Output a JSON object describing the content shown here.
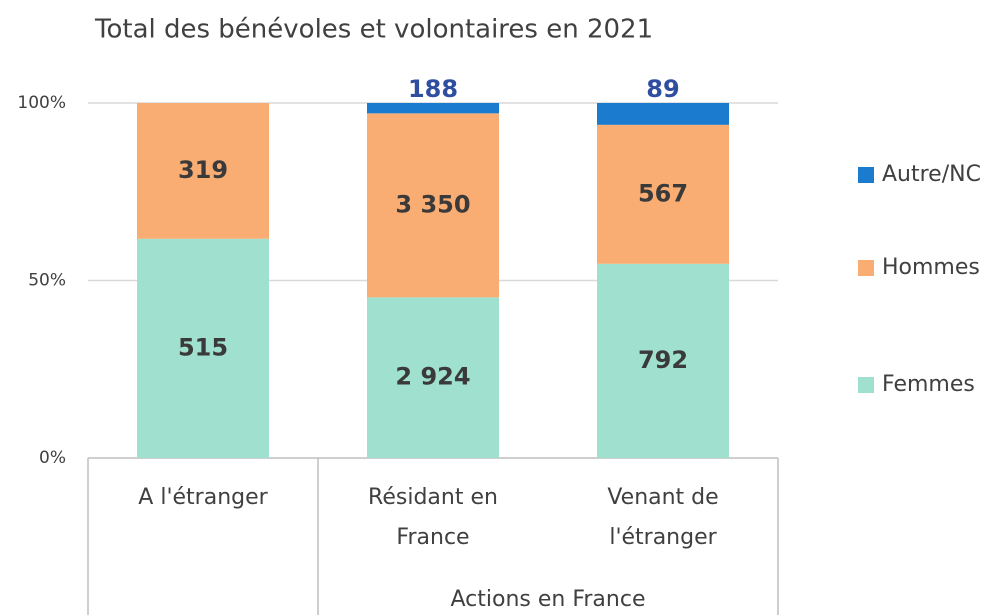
{
  "chart_data": {
    "type": "bar",
    "stacking": "percent",
    "title": "Total des bénévoles et volontaires en 2021",
    "categories": [
      "A l'étranger",
      "Résidant en France",
      "Venant de l'étranger"
    ],
    "group": {
      "label": "Actions en France",
      "start": 1,
      "end": 2
    },
    "series": [
      {
        "name": "Femmes",
        "color": "#a0e0cf",
        "values": [
          515,
          2924,
          792
        ],
        "value_labels": [
          "515",
          "2 924",
          "792"
        ]
      },
      {
        "name": "Hommes",
        "color": "#f9ad73",
        "values": [
          319,
          3350,
          567
        ],
        "value_labels": [
          "319",
          "3 350",
          "567"
        ]
      },
      {
        "name": "Autre/NC",
        "color": "#1b7ccf",
        "values": [
          null,
          188,
          89
        ]
      }
    ],
    "ylim": [
      0,
      100
    ],
    "yticks": [
      {
        "value": 0,
        "label": "0%"
      },
      {
        "value": 50,
        "label": "50%"
      },
      {
        "value": 100,
        "label": "100%"
      }
    ],
    "grid": true,
    "legend": "right"
  }
}
